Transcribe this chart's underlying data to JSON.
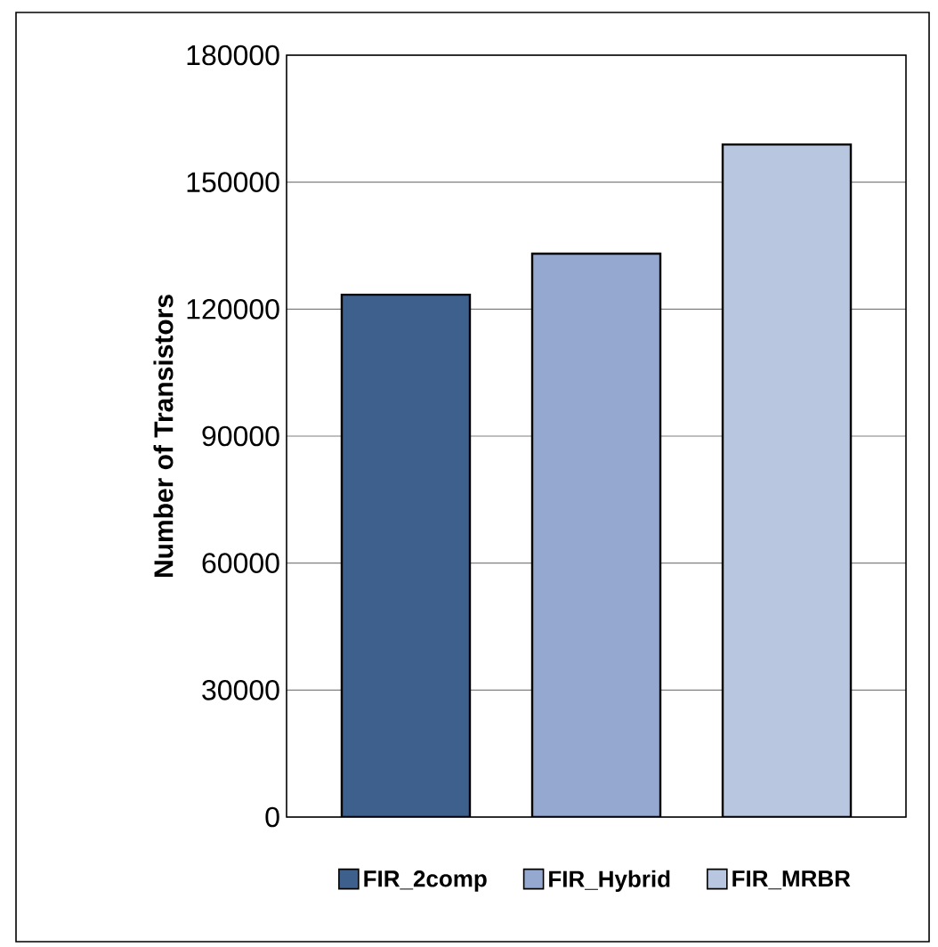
{
  "chart_data": {
    "type": "bar",
    "ylabel": "Number of Transistors",
    "categories": [
      null,
      null,
      null
    ],
    "series": [
      {
        "name": "FIR_2comp",
        "color": "#3d608c",
        "values": [
          123400,
          null,
          null
        ]
      },
      {
        "name": "FIR_Hybrid",
        "color": "#95a9d0",
        "values": [
          null,
          133100,
          null
        ]
      },
      {
        "name": "FIR_MRBR",
        "color": "#b9c6df",
        "values": [
          null,
          null,
          158900
        ]
      }
    ],
    "ylim": [
      0,
      180000
    ],
    "yticks": [
      0,
      30000,
      60000,
      90000,
      120000,
      150000,
      180000
    ],
    "grid": "y",
    "legend": "bottom"
  }
}
